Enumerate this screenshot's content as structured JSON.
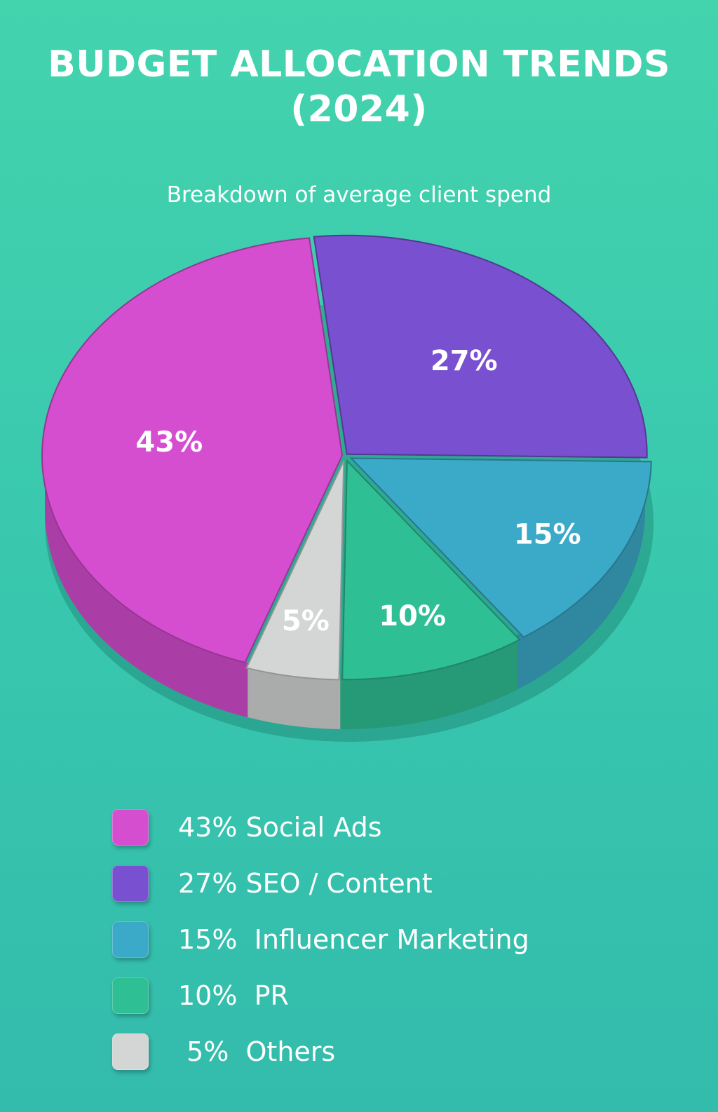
{
  "title": "BUDGET ALLOCATION TRENDS\n(2024)",
  "subtitle": "Breakdown of average client spend",
  "chart_data": {
    "type": "pie",
    "title": "BUDGET ALLOCATION TRENDS (2024)",
    "subtitle": "Breakdown of average client spend",
    "legend_position": "bottom",
    "slices": [
      {
        "name": "Social Ads",
        "value": 43,
        "label": "43%",
        "color": "#d54ed0"
      },
      {
        "name": "SEO / Content",
        "value": 27,
        "label": "27%",
        "color": "#7950d0"
      },
      {
        "name": "Influencer Marketing",
        "value": 15,
        "label": "15%",
        "color": "#3ba9c8"
      },
      {
        "name": "PR",
        "value": 10,
        "label": "10%",
        "color": "#2fbf94"
      },
      {
        "name": "Others",
        "value": 5,
        "label": "5%",
        "color": "#d4d6d6"
      }
    ]
  },
  "legend": {
    "items": [
      {
        "label": "43% Social Ads",
        "color": "#d54ed0"
      },
      {
        "label": "27% SEO / Content",
        "color": "#7950d0"
      },
      {
        "label": "15%  Influencer Marketing",
        "color": "#3ba9c8"
      },
      {
        "label": "10%  PR",
        "color": "#2fbf94"
      },
      {
        "label": " 5%  Others",
        "color": "#d4d6d6"
      }
    ]
  }
}
